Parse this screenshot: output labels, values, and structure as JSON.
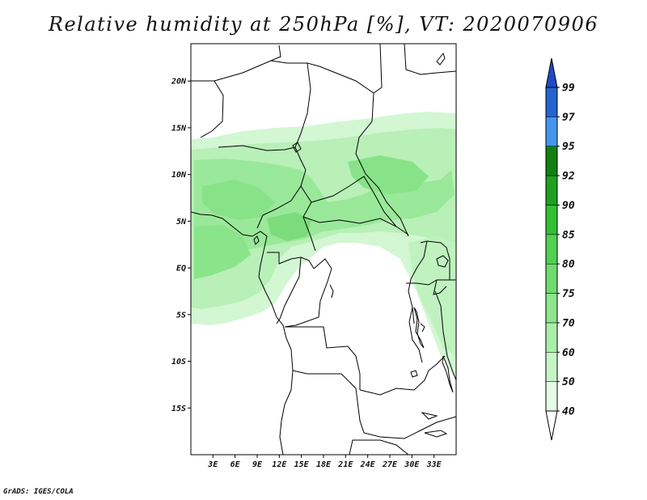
{
  "title": "Relative humidity at 250hPa [%], VT: 2020070906",
  "credit": "GrADS: IGES/COLA",
  "map": {
    "lon_range": [
      0,
      36
    ],
    "lat_range": [
      -20,
      24
    ],
    "lat_ticks": [
      {
        "value": 20,
        "label": "20N"
      },
      {
        "value": 15,
        "label": "15N"
      },
      {
        "value": 10,
        "label": "10N"
      },
      {
        "value": 5,
        "label": "5N"
      },
      {
        "value": 0,
        "label": "EQ"
      },
      {
        "value": -5,
        "label": "5S"
      },
      {
        "value": -10,
        "label": "10S"
      },
      {
        "value": -15,
        "label": "15S"
      }
    ],
    "lon_ticks": [
      {
        "value": 3,
        "label": "3E"
      },
      {
        "value": 6,
        "label": "6E"
      },
      {
        "value": 9,
        "label": "9E"
      },
      {
        "value": 12,
        "label": "12E"
      },
      {
        "value": 15,
        "label": "15E"
      },
      {
        "value": 18,
        "label": "18E"
      },
      {
        "value": 21,
        "label": "21E"
      },
      {
        "value": 24,
        "label": "24E"
      },
      {
        "value": 27,
        "label": "27E"
      },
      {
        "value": 30,
        "label": "30E"
      },
      {
        "value": 33,
        "label": "33E"
      }
    ]
  },
  "colorbar": {
    "levels": [
      "40",
      "50",
      "60",
      "70",
      "75",
      "80",
      "85",
      "90",
      "92",
      "95",
      "97",
      "99"
    ],
    "colors": [
      "#ffffff",
      "#e6fce6",
      "#c8f5c8",
      "#aaeeaa",
      "#8ce68c",
      "#6edc6e",
      "#50d250",
      "#32c032",
      "#1ea01e",
      "#108010",
      "#4696f0",
      "#2364d2",
      "#1e4bc8"
    ]
  }
}
